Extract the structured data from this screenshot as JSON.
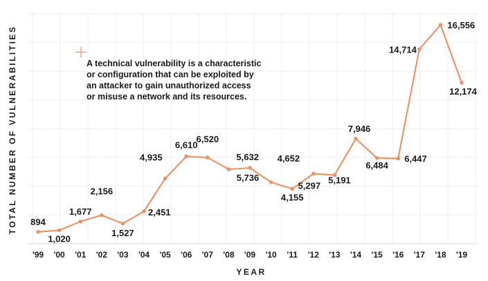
{
  "chart_data": {
    "type": "line",
    "title": "",
    "xlabel": "YEAR",
    "ylabel": "TOTAL NUMBER OF VULNERABILITIES",
    "categories": [
      "'99",
      "'00",
      "'01",
      "'02",
      "'03",
      "'04",
      "'05",
      "'06",
      "'07",
      "'08",
      "'09",
      "'10",
      "'11",
      "'12",
      "'13",
      "'14",
      "'15",
      "'16",
      "'17",
      "'18",
      "'19"
    ],
    "series": [
      {
        "name": "Vulnerabilities",
        "color": "#e9956a",
        "values": [
          894,
          1020,
          1677,
          2156,
          1527,
          2451,
          4935,
          6610,
          6520,
          5632,
          5736,
          4652,
          4155,
          5297,
          5191,
          7946,
          6484,
          6447,
          14714,
          16556,
          12174
        ],
        "data_labels": [
          "894",
          "1,020",
          "1,677",
          "2,156",
          "1,527",
          "2,451",
          "4,935",
          "6,610",
          "6,520",
          "5,632",
          "5,736",
          "4,652",
          "4,155",
          "5,297",
          "5,191",
          "7,946",
          "6,484",
          "6,447",
          "14,714",
          "16,556",
          "12,174"
        ]
      }
    ],
    "ylim": [
      0,
      17500
    ],
    "grid": true,
    "annotation": {
      "marker_color": "#e9956a",
      "lines": [
        "A technical vulnerability is a characteristic",
        "or configuration that can be exploited by",
        "an attacker to gain unauthorized access",
        "or misuse a network and its resources."
      ]
    }
  }
}
